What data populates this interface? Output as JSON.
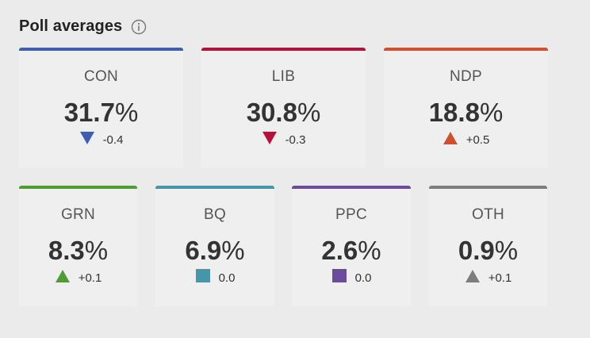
{
  "header": {
    "title": "Poll averages"
  },
  "parties": [
    {
      "code": "CON",
      "value": "31.7",
      "unit": "%",
      "change": "-0.4",
      "direction": "down",
      "color": "#3f5fad"
    },
    {
      "code": "LIB",
      "value": "30.8",
      "unit": "%",
      "change": "-0.3",
      "direction": "down",
      "color": "#b0143b"
    },
    {
      "code": "NDP",
      "value": "18.8",
      "unit": "%",
      "change": "+0.5",
      "direction": "up",
      "color": "#cf4f31"
    },
    {
      "code": "GRN",
      "value": "8.3",
      "unit": "%",
      "change": "+0.1",
      "direction": "up",
      "color": "#4e9d34"
    },
    {
      "code": "BQ",
      "value": "6.9",
      "unit": "%",
      "change": "0.0",
      "direction": "flat",
      "color": "#4596a8"
    },
    {
      "code": "PPC",
      "value": "2.6",
      "unit": "%",
      "change": "0.0",
      "direction": "flat",
      "color": "#6b4c9c"
    },
    {
      "code": "OTH",
      "value": "0.9",
      "unit": "%",
      "change": "+0.1",
      "direction": "up",
      "color": "#7d7d7d"
    }
  ]
}
